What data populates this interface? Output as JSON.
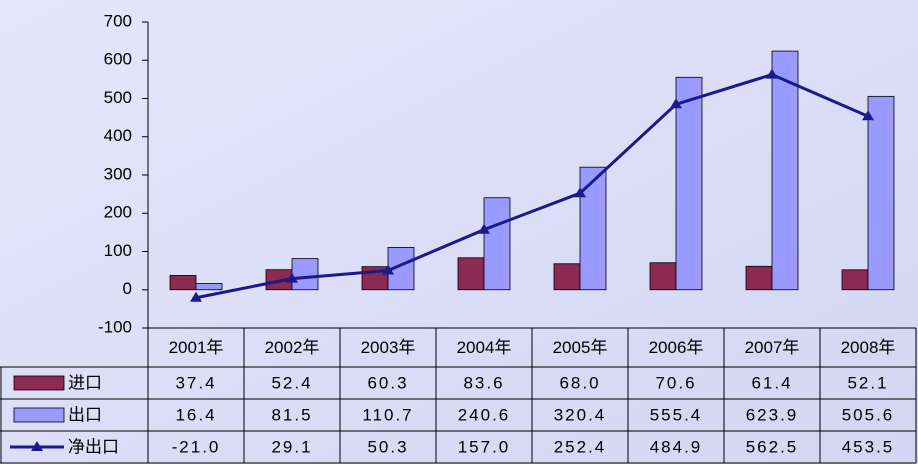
{
  "chart_data": {
    "type": "bar",
    "categories": [
      "2001年",
      "2002年",
      "2003年",
      "2004年",
      "2005年",
      "2006年",
      "2007年",
      "2008年"
    ],
    "series": [
      {
        "name": "进口",
        "type": "bar",
        "color": "#8b2a52",
        "values": [
          37.4,
          52.4,
          60.3,
          83.6,
          68.0,
          70.6,
          61.4,
          52.1
        ],
        "value_labels": [
          "37.4",
          "52.4",
          "60.3",
          "83.6",
          "68.0",
          "70.6",
          "61.4",
          "52.1"
        ]
      },
      {
        "name": "出口",
        "type": "bar",
        "color": "#9999ff",
        "values": [
          16.4,
          81.5,
          110.7,
          240.6,
          320.4,
          555.4,
          623.9,
          505.6
        ],
        "value_labels": [
          "16.4",
          "81.5",
          "110.7",
          "240.6",
          "320.4",
          "555.4",
          "623.9",
          "505.6"
        ]
      },
      {
        "name": "净出口",
        "type": "line",
        "color": "#1a1a8c",
        "values": [
          -21.0,
          29.1,
          50.3,
          157.0,
          252.4,
          484.9,
          562.5,
          453.5
        ],
        "value_labels": [
          "-21.0",
          "29.1",
          "50.3",
          "157.0",
          "252.4",
          "484.9",
          "562.5",
          "453.5"
        ]
      }
    ],
    "ylim": [
      -100,
      700
    ],
    "yticks": [
      -100,
      0,
      100,
      200,
      300,
      400,
      500,
      600,
      700
    ]
  }
}
